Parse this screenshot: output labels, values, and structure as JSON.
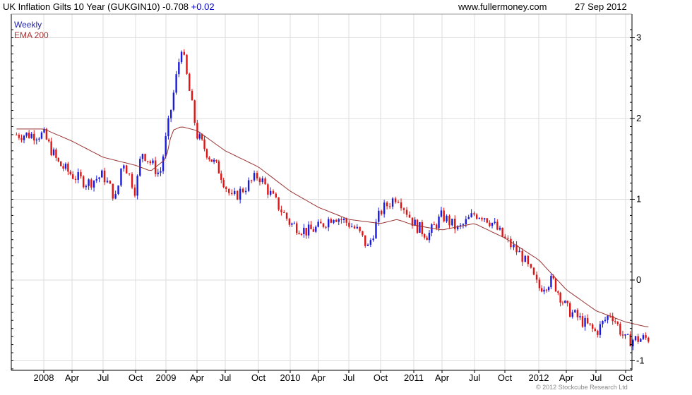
{
  "header": {
    "title": "UK Inflation Gilts 10 Year (GUKGIN10)",
    "last": "-0.708",
    "change": "+0.02",
    "site": "www.fullermoney.com",
    "date": "27 Sep 2012"
  },
  "legend": {
    "series1": "Weekly",
    "series2": "EMA 200"
  },
  "footer": {
    "copyright": "© 2012 Stockcube Research Ltd"
  },
  "colors": {
    "up": "#1a1adb",
    "down": "#e01414",
    "ema": "#993333",
    "grid": "#dddddd",
    "axis": "#000000"
  },
  "chart_data": {
    "type": "candlestick",
    "title": "UK Inflation Gilts 10 Year (GUKGIN10)",
    "xlabel": "",
    "ylabel": "",
    "ylim": [
      -1.1,
      3.15
    ],
    "y_ticks": [
      -1,
      0,
      1,
      2,
      3
    ],
    "x_tick_labels": [
      "2008",
      "Apr",
      "Jul",
      "Oct",
      "2009",
      "Apr",
      "Jul",
      "Oct",
      "2010",
      "Apr",
      "Jul",
      "Oct",
      "2011",
      "Apr",
      "Jul",
      "Oct",
      "2012",
      "Apr",
      "Jul",
      "Oct"
    ],
    "grid": true,
    "legend": "top-left",
    "price_path": {
      "t": [
        0,
        0.5,
        1,
        1.5,
        2,
        2.4,
        2.6,
        3,
        3.2,
        3.8,
        4.2,
        4.5,
        5,
        5.4,
        5.8,
        6.2,
        6.6,
        7,
        7.4,
        8,
        8.6,
        9,
        9.5,
        10,
        10.3,
        10.6,
        11,
        11.5,
        12,
        12.5,
        13,
        13.5,
        14,
        14.3,
        14.6,
        15,
        15.5,
        16,
        16.5,
        17,
        17.5,
        18,
        18.5,
        19,
        19.7
      ],
      "price": [
        1.8,
        1.45,
        1.3,
        1.2,
        1.3,
        1.0,
        1.5,
        1.1,
        1.6,
        1.3,
        2.2,
        2.9,
        1.8,
        1.55,
        1.35,
        1.0,
        1.15,
        1.3,
        1.05,
        0.7,
        0.6,
        0.65,
        0.8,
        0.7,
        0.6,
        0.4,
        0.85,
        1.05,
        0.7,
        0.55,
        0.8,
        0.62,
        0.82,
        0.8,
        0.7,
        0.5,
        0.3,
        -0.1,
        0.0,
        -0.35,
        -0.5,
        -0.65,
        -0.4,
        -0.75,
        -0.72
      ]
    },
    "ema_path": {
      "t": [
        0,
        1,
        2,
        3,
        3.5,
        4,
        4.2,
        4.5,
        5,
        6,
        7,
        8,
        9,
        10,
        11,
        11.5,
        12,
        13,
        14,
        15,
        16,
        17,
        18,
        19,
        19.7
      ],
      "value": [
        1.87,
        1.72,
        1.52,
        1.42,
        1.35,
        1.5,
        1.85,
        1.9,
        1.85,
        1.6,
        1.4,
        1.1,
        0.9,
        0.75,
        0.7,
        0.75,
        0.68,
        0.62,
        0.7,
        0.52,
        0.25,
        -0.12,
        -0.38,
        -0.52,
        -0.58
      ]
    },
    "last_value": -0.708,
    "ema_last": -0.58
  }
}
